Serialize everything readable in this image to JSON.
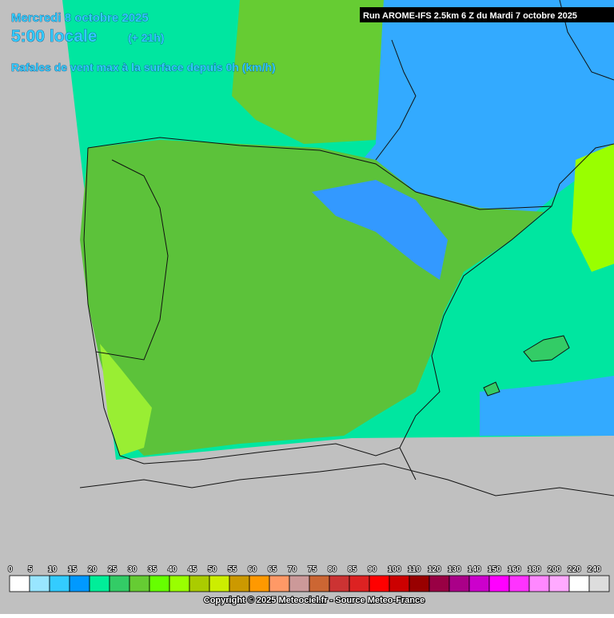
{
  "header": {
    "date": "Mercredi 8 octobre 2025",
    "time": "5:00 locale",
    "offset": "(+ 21h)",
    "subtitle": "Rafales de vent max à la surface depuis 0h (km/h)",
    "run": "Run AROME-IFS 2.5km 6 Z du Mardi 7 octobre 2025"
  },
  "legend": {
    "items": [
      {
        "label": 0,
        "color": "#ffffff"
      },
      {
        "label": 5,
        "color": "#99e6ff"
      },
      {
        "label": 10,
        "color": "#33ccff"
      },
      {
        "label": 15,
        "color": "#0099ff"
      },
      {
        "label": 20,
        "color": "#00ee99"
      },
      {
        "label": 25,
        "color": "#33cc66"
      },
      {
        "label": 30,
        "color": "#66cc33"
      },
      {
        "label": 35,
        "color": "#66ff00"
      },
      {
        "label": 40,
        "color": "#99ff00"
      },
      {
        "label": 45,
        "color": "#aacc00"
      },
      {
        "label": 50,
        "color": "#ccee00"
      },
      {
        "label": 55,
        "color": "#cc9900"
      },
      {
        "label": 60,
        "color": "#ff9900"
      },
      {
        "label": 65,
        "color": "#ff9966"
      },
      {
        "label": 70,
        "color": "#cc9999"
      },
      {
        "label": 75,
        "color": "#cc6633"
      },
      {
        "label": 80,
        "color": "#cc3333"
      },
      {
        "label": 85,
        "color": "#dd2222"
      },
      {
        "label": 90,
        "color": "#ff0000"
      },
      {
        "label": 100,
        "color": "#cc0000"
      },
      {
        "label": 110,
        "color": "#990000"
      },
      {
        "label": 120,
        "color": "#990044"
      },
      {
        "label": 130,
        "color": "#aa0088"
      },
      {
        "label": 140,
        "color": "#cc00cc"
      },
      {
        "label": 150,
        "color": "#ff00ff"
      },
      {
        "label": 160,
        "color": "#ff33ff"
      },
      {
        "label": 180,
        "color": "#ff88ff"
      },
      {
        "label": 200,
        "color": "#ffaaff"
      },
      {
        "label": 220,
        "color": "#ffffff"
      },
      {
        "label": 240,
        "color": "#dddddd"
      }
    ]
  },
  "copyright": "Copyright © 2025 Meteociel.fr - Source Meteo-France"
}
